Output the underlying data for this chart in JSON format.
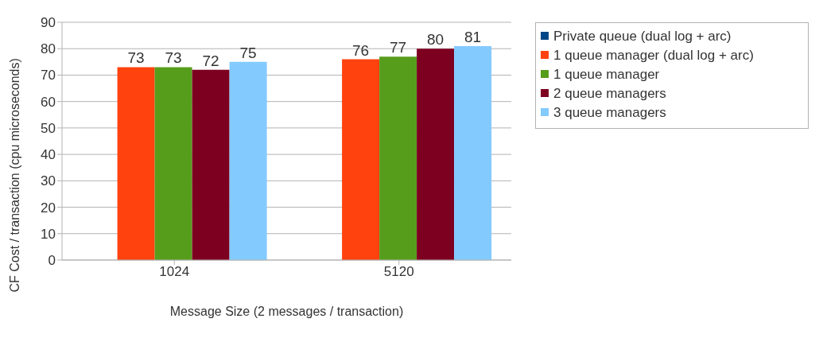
{
  "chart_data": {
    "type": "bar",
    "xlabel": "Message Size (2 messages / transaction)",
    "ylabel": "CF Cost / transaction (cpu microseconds)",
    "categories": [
      "1024",
      "5120"
    ],
    "series": [
      {
        "name": "Private queue (dual log + arc)",
        "color": "#004586",
        "values": [
          null,
          null
        ]
      },
      {
        "name": "1 queue manager (dual log + arc)",
        "color": "#ff420e",
        "values": [
          73,
          76
        ]
      },
      {
        "name": "1 queue manager",
        "color": "#579d1c",
        "values": [
          73,
          77
        ]
      },
      {
        "name": "2 queue managers",
        "color": "#7e0021",
        "values": [
          72,
          80
        ]
      },
      {
        "name": "3 queue managers",
        "color": "#83caff",
        "values": [
          75,
          81
        ]
      }
    ],
    "ylim": [
      0,
      90
    ],
    "yticks": [
      0,
      10,
      20,
      30,
      40,
      50,
      60,
      70,
      80,
      90
    ],
    "grid": "y",
    "legend": "right",
    "data_labels": true
  }
}
